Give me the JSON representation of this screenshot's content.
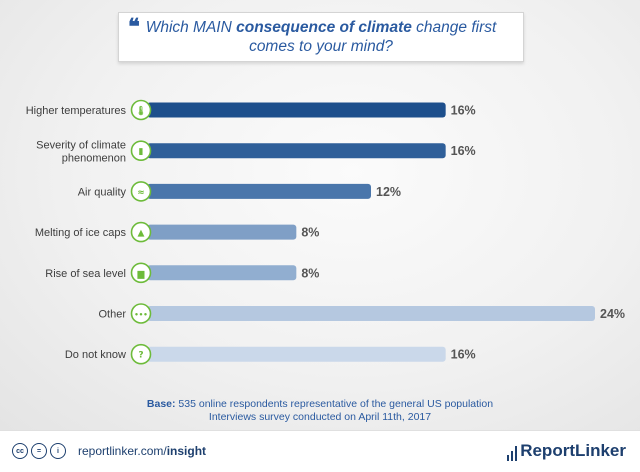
{
  "title": {
    "prefix": "Which MAIN ",
    "bold": "consequence of climate",
    "suffix": " change first comes to your mind?"
  },
  "chart_data": {
    "type": "bar",
    "orientation": "horizontal",
    "categories": [
      "Higher temperatures",
      "Severity of climate phenomenon",
      "Air quality",
      "Melting of ice caps",
      "Rise of sea level",
      "Other",
      "Do not know"
    ],
    "values": [
      16,
      16,
      12,
      8,
      8,
      24,
      16
    ],
    "value_labels": [
      "16%",
      "16%",
      "12%",
      "8%",
      "8%",
      "24%",
      "16%"
    ],
    "icons": [
      "thermometer-icon",
      "chart-icon",
      "wind-icon",
      "ice-cap-icon",
      "sea-level-icon",
      "dots-icon",
      "question-icon"
    ],
    "bar_colors": [
      "#1d4f8c",
      "#2f5f99",
      "#4a76ab",
      "#7f9fc6",
      "#91aed0",
      "#b5c8e0",
      "#cad8ea"
    ],
    "icon_color": "#6dbb3a",
    "xlim": [
      0,
      24
    ]
  },
  "base": {
    "label": "Base:",
    "line1": " 535 online respondents representative of the general US population",
    "line2": "Interviews survey conducted on April 11th, 2017"
  },
  "footer": {
    "cc_icons": [
      "cc",
      "=",
      "i"
    ],
    "site_plain": "reportlinker.com/",
    "site_bold": "insight",
    "brand": "ReportLinker"
  }
}
